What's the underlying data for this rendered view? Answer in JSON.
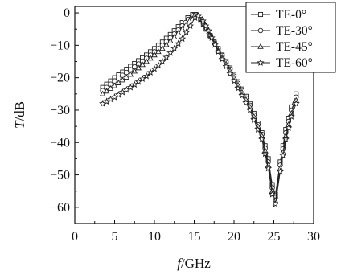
{
  "chart_data": {
    "type": "line",
    "title": "",
    "xlabel": {
      "italic": "f",
      "rest": "/GHz"
    },
    "ylabel": {
      "italic": "T",
      "rest": "/dB"
    },
    "xlim": [
      0,
      30
    ],
    "ylim": [
      -65,
      2
    ],
    "xticks": [
      0,
      5,
      10,
      15,
      20,
      25,
      30
    ],
    "yticks": [
      0,
      -10,
      -20,
      -30,
      -40,
      -50,
      -60
    ],
    "grid": false,
    "legend_position": "top-right",
    "series": [
      {
        "name": "TE-0°",
        "marker": "square",
        "x": [
          3.5,
          5,
          7,
          9,
          11,
          12.5,
          13.5,
          14.2,
          14.8,
          15.2,
          15.8,
          16.5,
          18,
          20,
          22,
          23.5,
          24.3,
          24.8,
          25.2,
          25.8,
          26.5,
          27.2,
          27.8
        ],
        "y": [
          -23,
          -20,
          -16.5,
          -13,
          -9,
          -5.5,
          -3,
          -1.5,
          -0.5,
          -0.5,
          -2,
          -5,
          -11,
          -19,
          -28,
          -37,
          -45,
          -53,
          -56,
          -46,
          -36,
          -29,
          -25
        ]
      },
      {
        "name": "TE-30°",
        "marker": "circle",
        "x": [
          3.5,
          5,
          7,
          9,
          11,
          12.5,
          13.5,
          14.3,
          14.9,
          15.3,
          15.9,
          16.6,
          18,
          20,
          22,
          23.5,
          24.3,
          24.8,
          25.2,
          25.8,
          26.5,
          27.2,
          27.8
        ],
        "y": [
          -24,
          -21,
          -17.5,
          -14,
          -10,
          -6.5,
          -4,
          -2,
          -0.8,
          -0.6,
          -2,
          -5,
          -11,
          -19.5,
          -28.5,
          -37.5,
          -46,
          -54,
          -57,
          -47,
          -37,
          -30,
          -26
        ]
      },
      {
        "name": "TE-45°",
        "marker": "triangle",
        "x": [
          3.5,
          5,
          7,
          9,
          11,
          12.5,
          13.5,
          14.4,
          15,
          15.4,
          16,
          16.7,
          18,
          20,
          22,
          23.5,
          24.3,
          24.8,
          25.2,
          25.8,
          26.5,
          27.2,
          27.8
        ],
        "y": [
          -25,
          -22.5,
          -19,
          -15,
          -11,
          -7.5,
          -5,
          -2.5,
          -1,
          -0.8,
          -2,
          -5,
          -11.5,
          -20,
          -29,
          -38,
          -47,
          -55,
          -58,
          -48,
          -38,
          -31,
          -27
        ]
      },
      {
        "name": "TE-60°",
        "marker": "star",
        "x": [
          3.5,
          5,
          7,
          9,
          11,
          12.5,
          13.5,
          14.5,
          15.1,
          15.5,
          16.1,
          16.8,
          18,
          20,
          22,
          23.5,
          24.3,
          24.8,
          25.2,
          25.8,
          26.5,
          27.2,
          27.8
        ],
        "y": [
          -28,
          -26,
          -23,
          -19.5,
          -15,
          -11,
          -8,
          -4,
          -1.5,
          -1,
          -2.5,
          -5.5,
          -12,
          -21,
          -30,
          -39,
          -48,
          -56,
          -59,
          -49,
          -39,
          -32,
          -28
        ]
      }
    ]
  }
}
